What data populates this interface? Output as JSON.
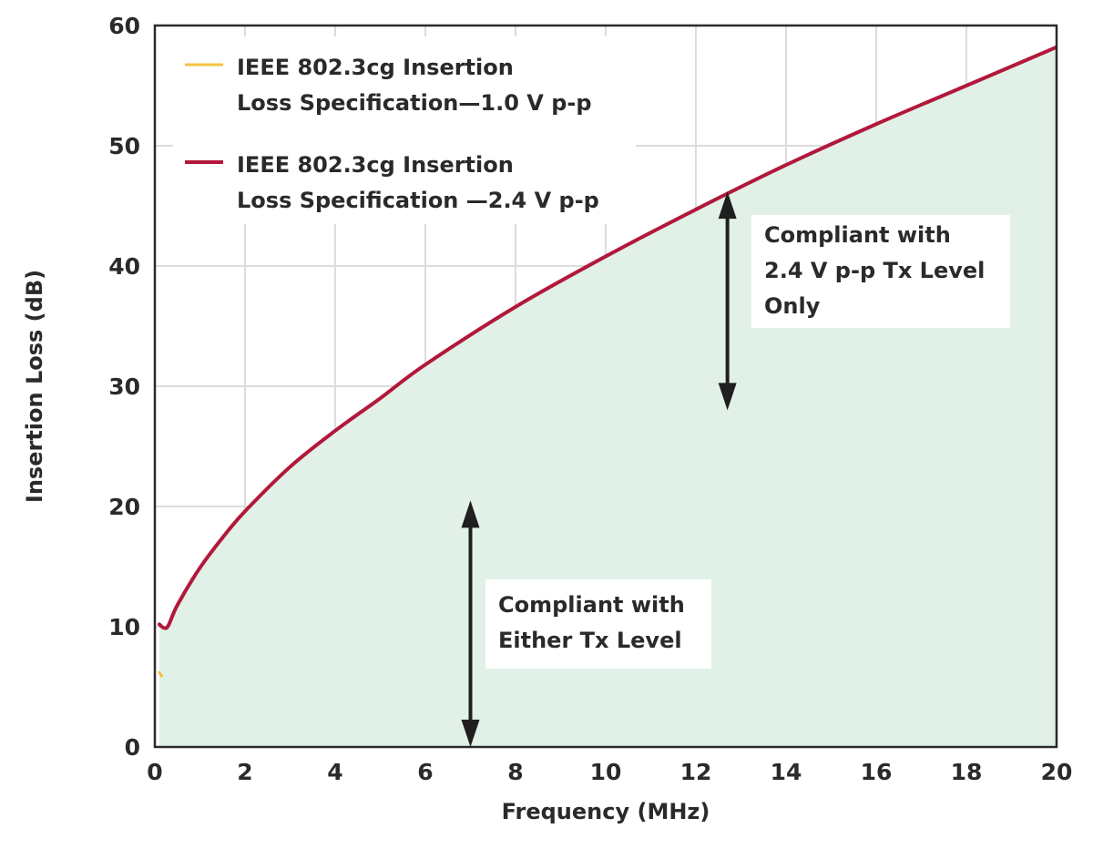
{
  "chart_data": {
    "type": "area",
    "xlabel": "Frequency (MHz)",
    "ylabel": "Insertion Loss (dB)",
    "xlim": [
      0,
      20
    ],
    "ylim": [
      0,
      60
    ],
    "xticks": [
      "0",
      "2",
      "4",
      "6",
      "8",
      "10",
      "12",
      "14",
      "16",
      "18",
      "20"
    ],
    "yticks": [
      "0",
      "10",
      "20",
      "30",
      "40",
      "50",
      "60"
    ],
    "grid": true,
    "legend_position": "top-left",
    "fill_color": "#e1f1e8",
    "series": [
      {
        "name_lines": [
          "IEEE 802.3cg Insertion",
          "Loss Specification—1.0 V p-p"
        ],
        "color": "#f5c242",
        "x": [
          0.1,
          0.15
        ],
        "y": [
          6.2,
          5.9
        ]
      },
      {
        "name_lines": [
          "IEEE 802.3cg Insertion",
          "Loss Specification —2.4 V p-p"
        ],
        "color": "#b2183b",
        "x": [
          0.1,
          0.2,
          0.3,
          0.5,
          1,
          1.5,
          2,
          3,
          4,
          5,
          6,
          8,
          10,
          12,
          14,
          16,
          18,
          20
        ],
        "y": [
          10.2,
          9.9,
          10.1,
          11.8,
          14.9,
          17.4,
          19.6,
          23.3,
          26.3,
          29.0,
          31.8,
          36.6,
          40.8,
          44.7,
          48.4,
          51.8,
          55.0,
          58.2
        ]
      }
    ],
    "annotations": [
      {
        "lines": [
          "Compliant with",
          "2.4 V p-p Tx Level",
          "Only"
        ],
        "arrow_x": 12.7,
        "arrow_y": [
          46.2,
          28.0
        ]
      },
      {
        "lines": [
          "Compliant with",
          "Either Tx Level"
        ],
        "arrow_x": 7.0,
        "arrow_y": [
          20.5,
          0.0
        ]
      }
    ]
  }
}
